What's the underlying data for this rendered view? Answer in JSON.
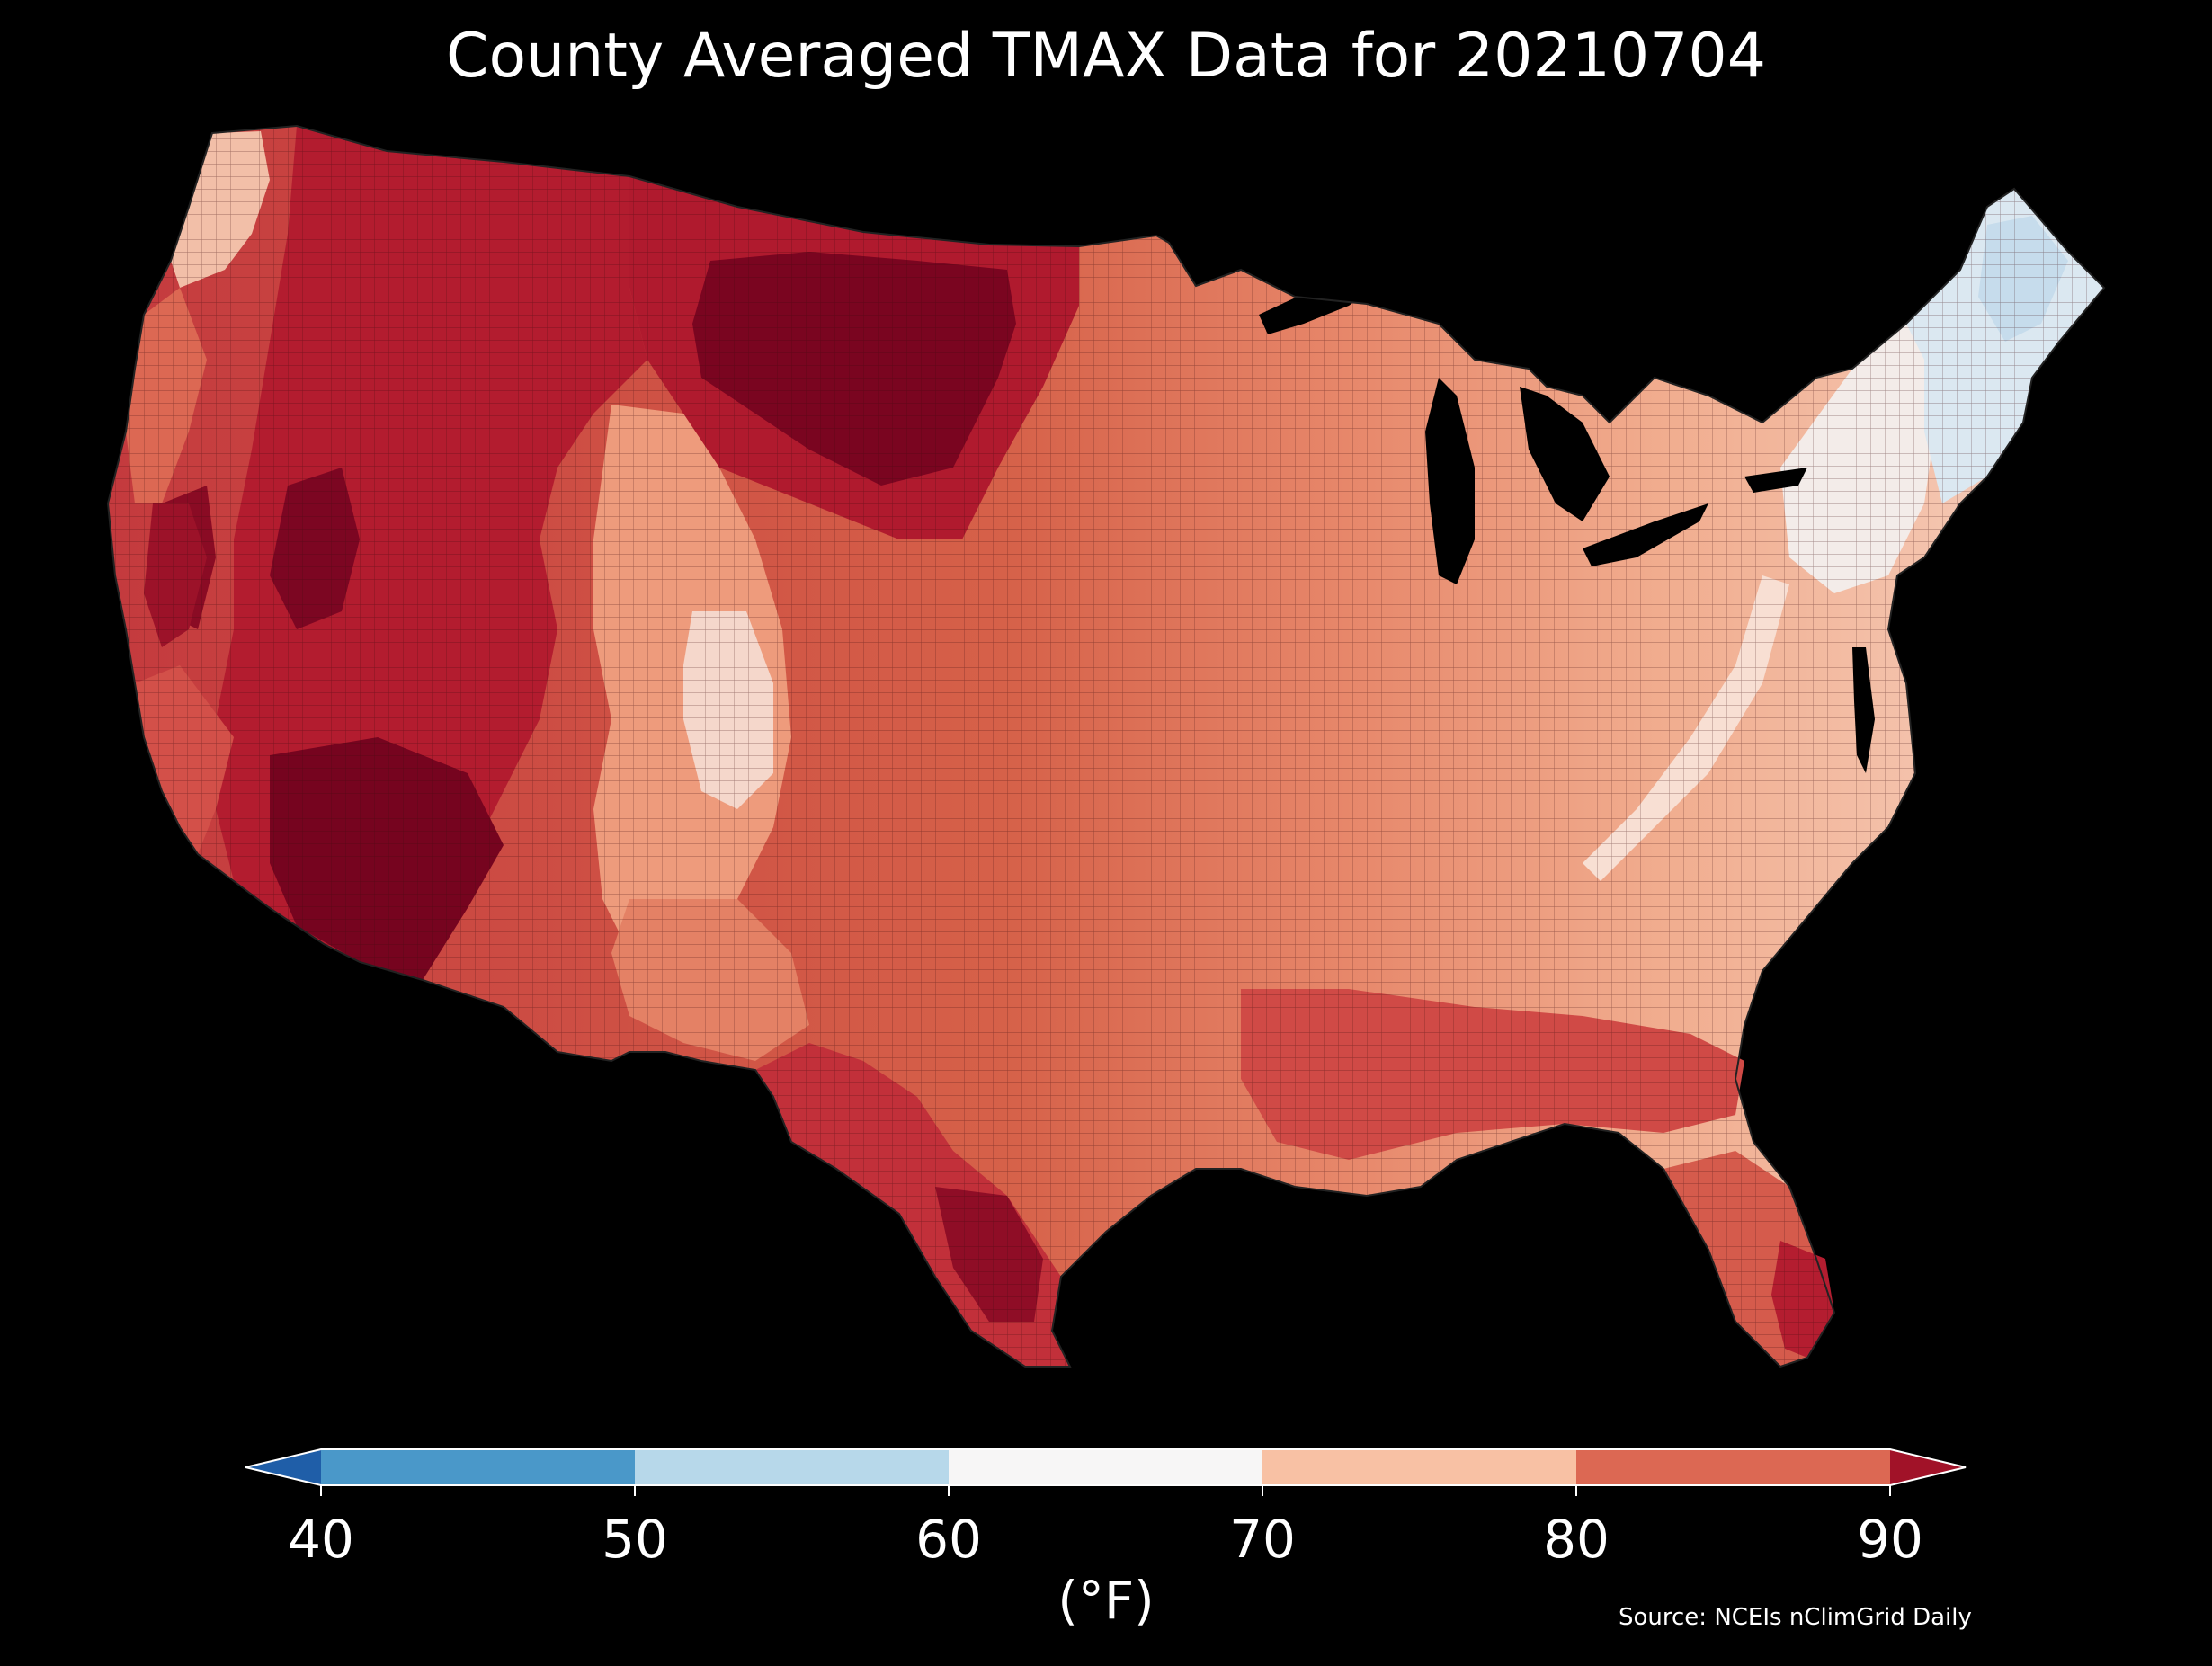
{
  "title": "County Averaged TMAX Data for 20210704",
  "colorbar": {
    "units_label": "(°F)",
    "ticks": [
      "40",
      "50",
      "60",
      "70",
      "80",
      "90"
    ],
    "min": 40,
    "max": 90,
    "bins": [
      {
        "from": 40,
        "to": 50,
        "color": "#4a98c9"
      },
      {
        "from": 50,
        "to": 60,
        "color": "#b7d8ea"
      },
      {
        "from": 60,
        "to": 70,
        "color": "#f7f6f6"
      },
      {
        "from": 70,
        "to": 80,
        "color": "#f8c1a4"
      },
      {
        "from": 80,
        "to": 90,
        "color": "#dc6853"
      }
    ],
    "under_color": "#1f5ea8",
    "over_color": "#a11228",
    "extend": "both"
  },
  "source": "Source: NCEIs nClimGrid Daily",
  "map": {
    "region": "Contiguous United States",
    "variable": "TMAX",
    "aggregation": "County averaged",
    "date": "20210704",
    "background_color": "#000000"
  }
}
